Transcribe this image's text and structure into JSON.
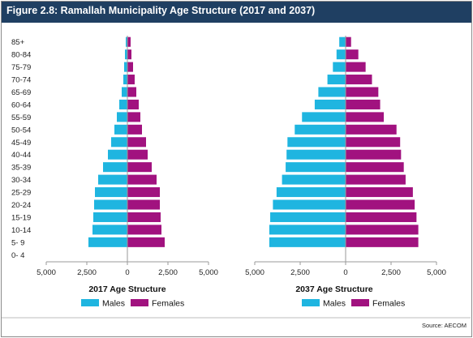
{
  "figure_title": "Figure 2.8: Ramallah Municipality Age Structure (2017 and 2037)",
  "source": "Source: AECOM",
  "colors": {
    "males": "#1fb5e0",
    "females": "#a1127f",
    "header": "#1f3f62"
  },
  "chart_data": [
    {
      "type": "bar",
      "subtype": "population-pyramid",
      "title": "",
      "xlabel": "2017 Age Structure",
      "ylabel": "",
      "categories": [
        "0- 4",
        "5- 9",
        "10-14",
        "15-19",
        "20-24",
        "25-29",
        "30-34",
        "35-39",
        "40-44",
        "45-49",
        "50-54",
        "55-59",
        "60-64",
        "65-69",
        "70-74",
        "75-79",
        "80-84",
        "85+"
      ],
      "xlim": [
        -5000,
        5000
      ],
      "xticks": [
        "5,000",
        "2,500",
        "0",
        "2,500",
        "5,000"
      ],
      "legend_position": "bottom",
      "grid": false,
      "series": [
        {
          "name": "Males",
          "values": [
            0,
            2400,
            2150,
            2100,
            2050,
            2000,
            1800,
            1500,
            1200,
            1000,
            800,
            650,
            500,
            350,
            250,
            200,
            150,
            100
          ]
        },
        {
          "name": "Females",
          "values": [
            0,
            2300,
            2100,
            2050,
            2000,
            2000,
            1800,
            1500,
            1250,
            1150,
            900,
            800,
            700,
            550,
            450,
            350,
            250,
            200
          ]
        }
      ]
    },
    {
      "type": "bar",
      "subtype": "population-pyramid",
      "title": "",
      "xlabel": "2037 Age Structure",
      "ylabel": "",
      "categories": [
        "0- 4",
        "5- 9",
        "10-14",
        "15-19",
        "20-24",
        "25-29",
        "30-34",
        "35-39",
        "40-44",
        "45-49",
        "50-54",
        "55-59",
        "60-64",
        "65-69",
        "70-74",
        "75-79",
        "80-84",
        "85+"
      ],
      "xlim": [
        -5000,
        5000
      ],
      "xticks": [
        "5,000",
        "2,500",
        "0",
        "2,500",
        "5,000"
      ],
      "legend_position": "bottom",
      "grid": false,
      "series": [
        {
          "name": "Males",
          "values": [
            0,
            4200,
            4200,
            4150,
            4000,
            3800,
            3500,
            3300,
            3250,
            3200,
            2800,
            2400,
            1700,
            1500,
            1000,
            700,
            500,
            350
          ]
        },
        {
          "name": "Females",
          "values": [
            0,
            4000,
            4000,
            3900,
            3800,
            3700,
            3300,
            3200,
            3050,
            3000,
            2800,
            2100,
            1900,
            1800,
            1450,
            1100,
            700,
            300
          ]
        }
      ]
    }
  ]
}
